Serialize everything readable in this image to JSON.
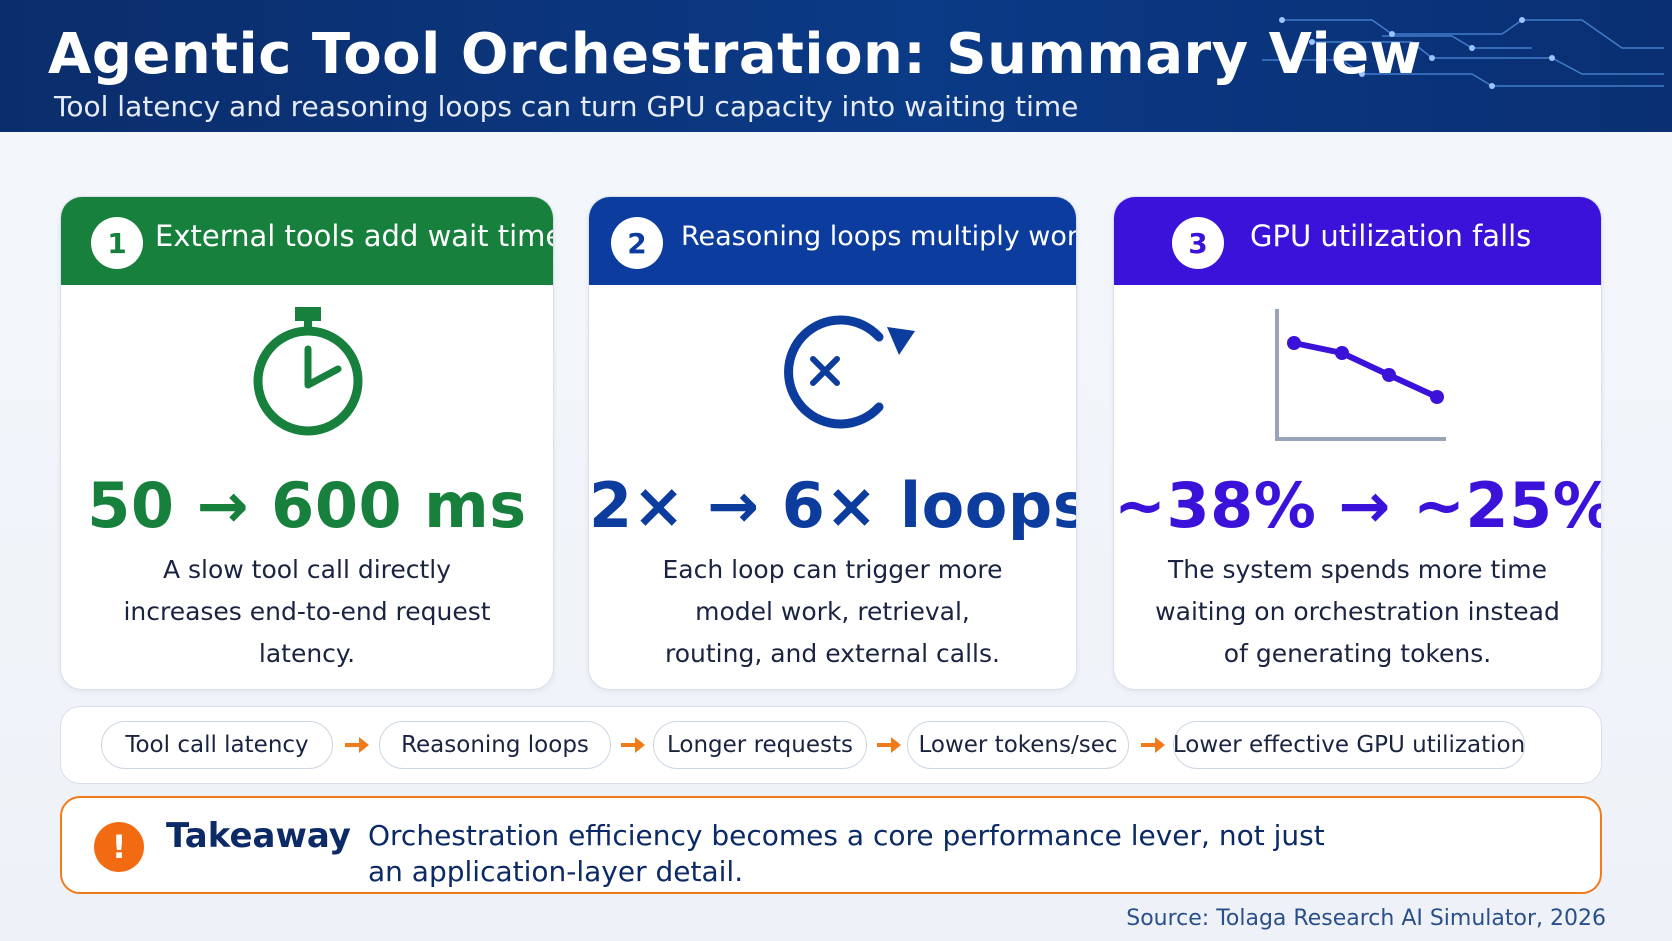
{
  "header": {
    "title": "Agentic Tool Orchestration: Summary View",
    "subtitle": "Tool latency and reasoning loops can turn GPU capacity into waiting time"
  },
  "cards": [
    {
      "number": "1",
      "label": "External tools add wait time",
      "stat": "50 → 600 ms",
      "description": "A slow tool call directly increases end-to-end request latency.",
      "icon": "stopwatch-icon",
      "color": "#16803c"
    },
    {
      "number": "2",
      "label": "Reasoning loops multiply work",
      "stat": "2× → 6× loops",
      "description": "Each loop can trigger more model work, retrieval, routing, and external calls.",
      "icon": "loop-icon",
      "color": "#0b3c9e"
    },
    {
      "number": "3",
      "label": "GPU utilization falls",
      "stat": "~38% → ~25%",
      "description": "The system spends more time waiting on orchestration instead of generating tokens.",
      "icon": "declining-line-chart-icon",
      "color": "#3b12d9"
    }
  ],
  "flow": {
    "steps": [
      "Tool call latency",
      "Reasoning loops",
      "Longer requests",
      "Lower tokens/sec",
      "Lower effective GPU utilization"
    ],
    "arrow_color": "#f07b1a"
  },
  "takeaway": {
    "label": "Takeaway",
    "text": "Orchestration efficiency becomes a core performance lever, not just an application-layer detail.",
    "icon": "exclamation-icon"
  },
  "source": "Source: Tolaga Research AI Simulator, 2026"
}
